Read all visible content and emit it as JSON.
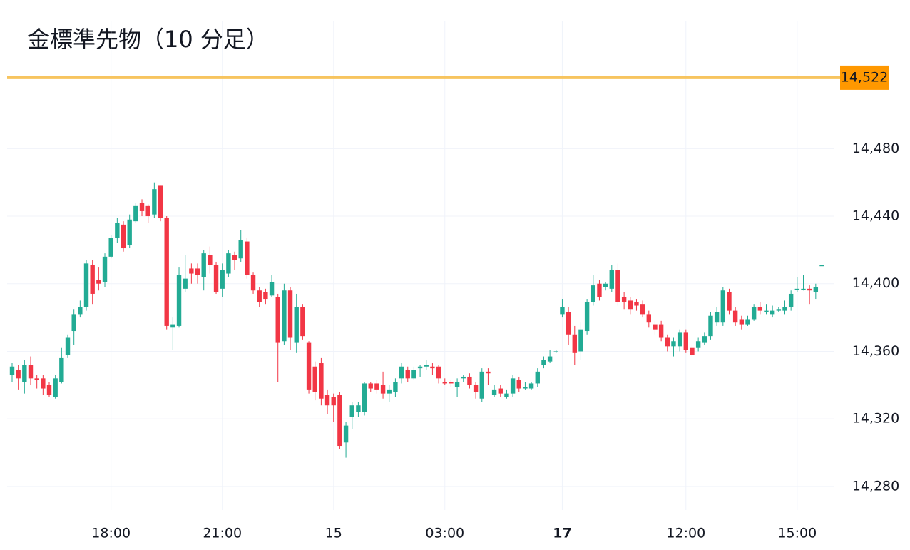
{
  "chart_data": {
    "type": "candlestick",
    "title": "金標準先物（10 分足）",
    "categories": [
      null,
      null,
      null,
      null,
      null,
      null,
      null,
      null,
      null,
      null,
      null,
      null,
      null,
      null,
      null,
      null,
      "18:00",
      null,
      null,
      null,
      null,
      null,
      null,
      null,
      null,
      null,
      null,
      null,
      null,
      null,
      null,
      null,
      null,
      null,
      "21:00",
      null,
      null,
      null,
      null,
      null,
      null,
      null,
      null,
      null,
      null,
      null,
      null,
      null,
      null,
      null,
      null,
      null,
      "15",
      null,
      null,
      null,
      null,
      null,
      null,
      null,
      null,
      null,
      null,
      null,
      null,
      null,
      null,
      null,
      null,
      null,
      "03:00",
      null,
      null,
      null,
      null,
      null,
      null,
      null,
      null,
      null,
      null,
      null,
      null,
      null,
      null,
      null,
      null,
      null,
      null,
      "17",
      null,
      null,
      null,
      null,
      null,
      null,
      null,
      null,
      null,
      null,
      null,
      null,
      null,
      null,
      null,
      null,
      null,
      null,
      null,
      "12:00",
      null,
      null,
      null,
      null,
      null,
      null,
      null,
      null,
      null,
      null,
      null,
      null,
      null,
      null,
      null,
      null,
      null,
      "15:00",
      null,
      null,
      null,
      null
    ],
    "bold_categories": [
      "17"
    ],
    "open": [
      14346,
      14349,
      14342,
      14352,
      14344,
      14344,
      14340,
      14333,
      14342,
      14358,
      14372,
      14382,
      14386,
      14411,
      14402,
      14401,
      14416,
      14427,
      14435,
      14423,
      14437,
      14448,
      14446,
      14441,
      14458,
      14439,
      14374,
      14375,
      14397,
      14409,
      14409,
      14404,
      14417,
      14411,
      14397,
      14406,
      14417,
      14415,
      14425,
      14405,
      14396,
      14395,
      14393,
      14392,
      14366,
      14396,
      14365,
      14386,
      14365,
      14351,
      14353,
      14334,
      14333,
      14334,
      14306,
      14321,
      14324,
      14324,
      14341,
      14341,
      14340,
      14335,
      14336,
      14344,
      14349,
      14344,
      14350,
      14351,
      14351,
      14351,
      14342,
      14342,
      14339,
      14344,
      14345,
      14340,
      14332,
      14348,
      14334,
      14338,
      14333,
      14335,
      14343,
      14338,
      14338,
      14341,
      14352,
      14354,
      14360,
      14382,
      14383,
      14370,
      14360,
      14372,
      14389,
      14400,
      14398,
      14397,
      14408,
      14392,
      14390,
      14389,
      14388,
      14382,
      14376,
      14376,
      14368,
      14363,
      14363,
      14371,
      14362,
      14362,
      14365,
      14369,
      14377,
      14377,
      14395,
      14384,
      14379,
      14376,
      14379,
      14386,
      14384,
      14382,
      14384,
      14384,
      14386,
      14397,
      14397,
      14397,
      14395,
      14411
    ],
    "high": [
      14353,
      14352,
      14355,
      14357,
      14346,
      14346,
      14342,
      14346,
      14362,
      14370,
      14385,
      14390,
      14414,
      14414,
      14410,
      14418,
      14429,
      14439,
      14437,
      14441,
      14448,
      14450,
      14447,
      14460,
      14458,
      14440,
      14380,
      14410,
      14417,
      14412,
      14412,
      14420,
      14422,
      14413,
      14412,
      14420,
      14419,
      14432,
      14427,
      14407,
      14398,
      14397,
      14405,
      14394,
      14400,
      14398,
      14394,
      14388,
      14366,
      14354,
      14356,
      14337,
      14335,
      14336,
      14318,
      14330,
      14330,
      14342,
      14342,
      14343,
      14348,
      14340,
      14344,
      14353,
      14351,
      14351,
      14352,
      14355,
      14353,
      14352,
      14344,
      14343,
      14344,
      14346,
      14347,
      14342,
      14350,
      14350,
      14340,
      14340,
      14337,
      14346,
      14345,
      14342,
      14342,
      14350,
      14357,
      14361,
      14361,
      14391,
      14386,
      14375,
      14377,
      14391,
      14405,
      14402,
      14401,
      14411,
      14412,
      14395,
      14392,
      14391,
      14390,
      14384,
      14378,
      14378,
      14370,
      14368,
      14373,
      14373,
      14364,
      14368,
      14371,
      14383,
      14386,
      14398,
      14397,
      14386,
      14381,
      14381,
      14388,
      14389,
      14388,
      14387,
      14386,
      14390,
      14396,
      14404,
      14405,
      14399,
      14400,
      14411
    ],
    "low": [
      14342,
      14337,
      14335,
      14340,
      14338,
      14334,
      14333,
      14332,
      14341,
      14356,
      14364,
      14380,
      14384,
      14388,
      14396,
      14398,
      14415,
      14424,
      14419,
      14421,
      14436,
      14440,
      14436,
      14439,
      14437,
      14373,
      14361,
      14374,
      14395,
      14400,
      14400,
      14396,
      14406,
      14394,
      14392,
      14404,
      14408,
      14413,
      14403,
      14394,
      14386,
      14388,
      14392,
      14342,
      14364,
      14361,
      14359,
      14367,
      14335,
      14331,
      14328,
      14323,
      14318,
      14302,
      14297,
      14314,
      14321,
      14322,
      14336,
      14335,
      14332,
      14330,
      14333,
      14341,
      14342,
      14343,
      14345,
      14349,
      14346,
      14341,
      14340,
      14339,
      14333,
      14342,
      14338,
      14332,
      14330,
      14340,
      14333,
      14333,
      14332,
      14333,
      14336,
      14337,
      14337,
      14339,
      14350,
      14353,
      14359,
      14380,
      14364,
      14352,
      14355,
      14370,
      14387,
      14390,
      14396,
      14395,
      14387,
      14385,
      14382,
      14384,
      14380,
      14374,
      14370,
      14366,
      14360,
      14357,
      14360,
      14359,
      14357,
      14360,
      14364,
      14367,
      14375,
      14375,
      14382,
      14375,
      14373,
      14375,
      14378,
      14382,
      14382,
      14380,
      14383,
      14382,
      14384,
      14395,
      14396,
      14388,
      14391,
      14411
    ],
    "close": [
      14351,
      14344,
      14352,
      14344,
      14343,
      14338,
      14334,
      14344,
      14356,
      14368,
      14382,
      14386,
      14412,
      14394,
      14400,
      14416,
      14427,
      14436,
      14421,
      14438,
      14446,
      14443,
      14440,
      14456,
      14439,
      14375,
      14376,
      14405,
      14403,
      14406,
      14405,
      14418,
      14411,
      14395,
      14408,
      14418,
      14414,
      14426,
      14405,
      14396,
      14389,
      14391,
      14401,
      14365,
      14396,
      14368,
      14386,
      14369,
      14337,
      14336,
      14332,
      14328,
      14328,
      14304,
      14316,
      14328,
      14328,
      14341,
      14338,
      14337,
      14335,
      14337,
      14342,
      14351,
      14344,
      14349,
      14351,
      14352,
      14350,
      14344,
      14341,
      14341,
      14342,
      14345,
      14340,
      14336,
      14348,
      14347,
      14337,
      14335,
      14335,
      14344,
      14338,
      14339,
      14341,
      14348,
      14355,
      14357,
      14360,
      14386,
      14370,
      14359,
      14373,
      14389,
      14399,
      14392,
      14400,
      14408,
      14389,
      14389,
      14385,
      14387,
      14382,
      14377,
      14373,
      14368,
      14363,
      14366,
      14371,
      14361,
      14358,
      14366,
      14369,
      14381,
      14383,
      14396,
      14384,
      14377,
      14376,
      14379,
      14386,
      14384,
      14384,
      14384,
      14385,
      14386,
      14394,
      14397,
      14397,
      14396,
      14398,
      14411
    ],
    "up_color": "#22ab94",
    "down_color": "#f23645",
    "ylim": [
      14266,
      14568
    ],
    "yticks": [
      {
        "value": 14280,
        "label": "14,280"
      },
      {
        "value": 14320,
        "label": "14,320"
      },
      {
        "value": 14360,
        "label": "14,360"
      },
      {
        "value": 14400,
        "label": "14,400"
      },
      {
        "value": 14440,
        "label": "14,440"
      },
      {
        "value": 14480,
        "label": "14,480"
      }
    ],
    "price_line": {
      "value": 14522,
      "label": "14,522",
      "color": "#f7c45f",
      "label_color": "#ff9800"
    },
    "grid": true
  }
}
